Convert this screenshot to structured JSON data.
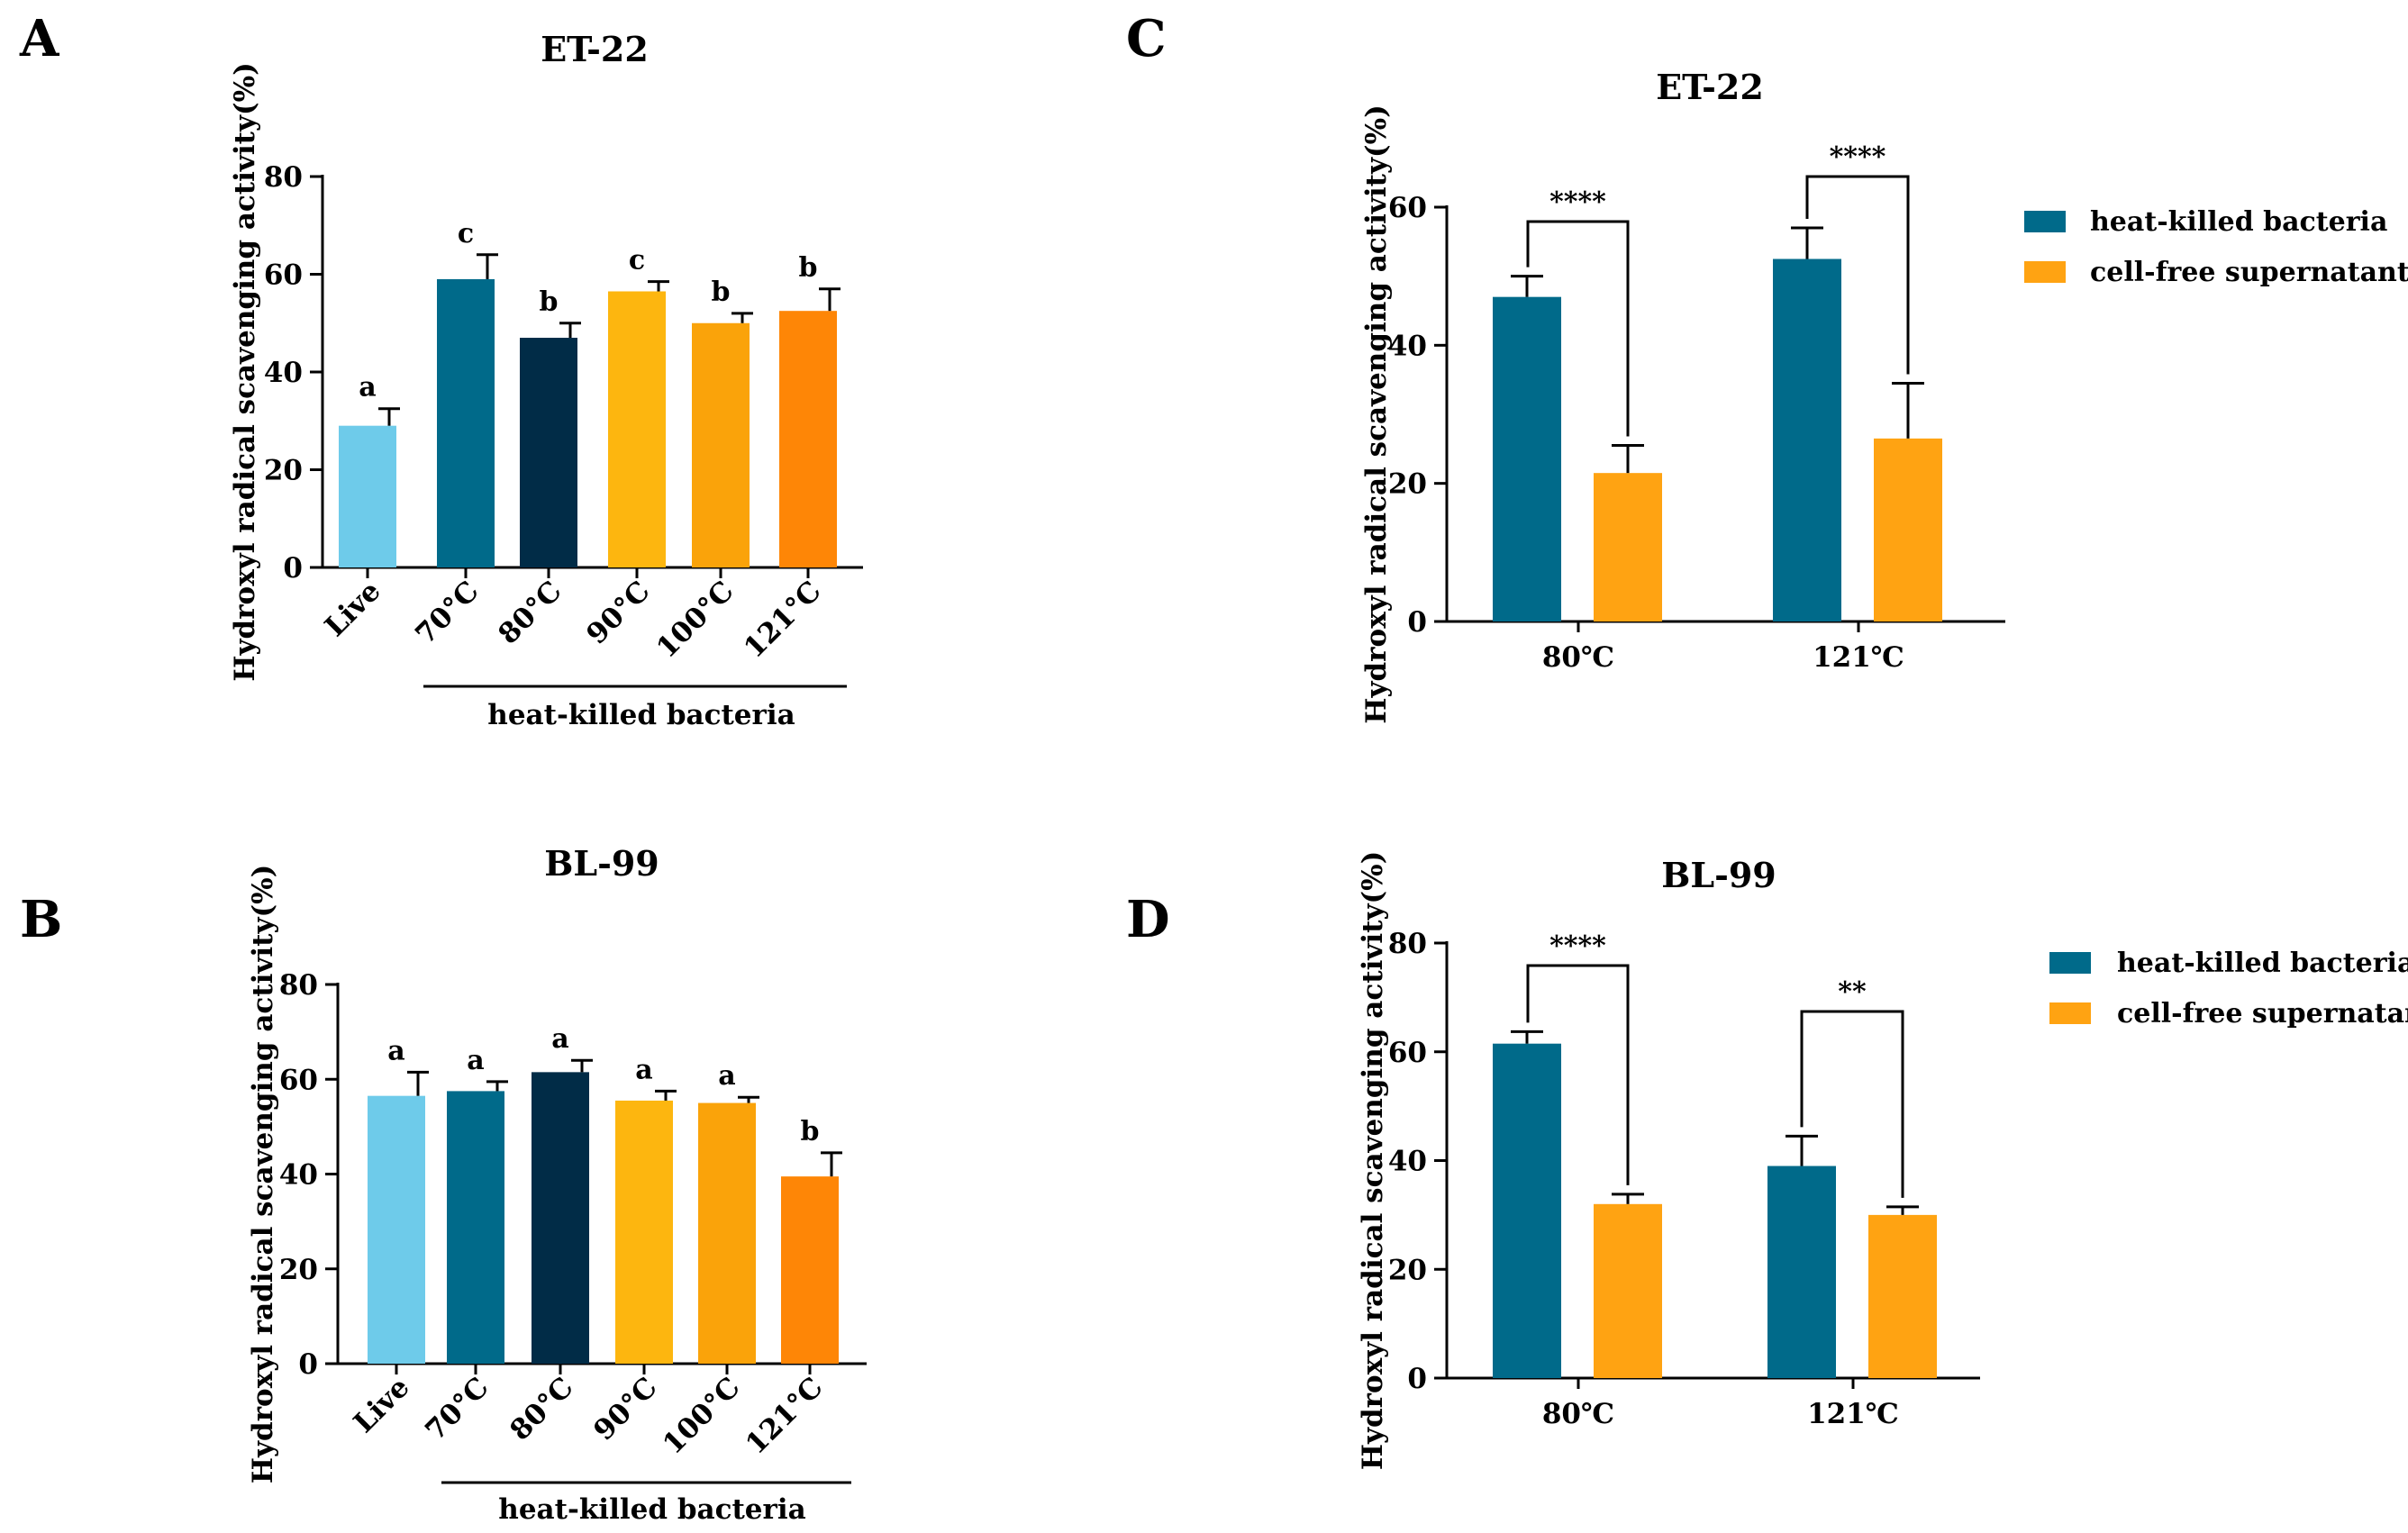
{
  "panels": {
    "A": "A",
    "B": "B",
    "C": "C",
    "D": "D"
  },
  "colors": {
    "live": "#6ECBEA",
    "c70": "#006A8A",
    "c80": "#012C47",
    "c90": "#FDB60F",
    "c100": "#FAA30A",
    "c121": "#FE8606",
    "heat_killed": "#006A8A",
    "supernatant": "#FFA312"
  },
  "chart_data": [
    {
      "id": "A",
      "type": "bar",
      "title": "ET-22",
      "ylabel": "Hydroxyl radical scavenging activity(%)",
      "ylim": [
        0,
        80
      ],
      "yticks": [
        "0",
        "20",
        "40",
        "60",
        "80"
      ],
      "categories": [
        "Live",
        "70°C",
        "80°C",
        "90°C",
        "100°C",
        "121°C"
      ],
      "values": [
        29,
        59,
        47,
        56.5,
        50,
        52.5
      ],
      "errors": [
        3.5,
        5,
        3,
        2,
        2,
        4.5
      ],
      "sig_letters": [
        "a",
        "c",
        "b",
        "c",
        "b",
        "b"
      ],
      "group_label": "heat-killed bacteria"
    },
    {
      "id": "B",
      "type": "bar",
      "title": "BL-99",
      "ylabel": "Hydroxyl radical scavenging activity(%)",
      "ylim": [
        0,
        80
      ],
      "yticks": [
        "0",
        "20",
        "40",
        "60",
        "80"
      ],
      "categories": [
        "Live",
        "70°C",
        "80°C",
        "90°C",
        "100°C",
        "121°C"
      ],
      "values": [
        56.5,
        57.5,
        61.5,
        55.5,
        55,
        39.5
      ],
      "errors": [
        5,
        2,
        2.5,
        2,
        1.2,
        5
      ],
      "sig_letters": [
        "a",
        "a",
        "a",
        "a",
        "a",
        "b"
      ],
      "group_label": "heat-killed bacteria"
    },
    {
      "id": "C",
      "type": "bar",
      "title": "ET-22",
      "ylabel": "Hydroxyl radical scavenging activity(%)",
      "ylim": [
        0,
        60
      ],
      "yticks": [
        "0",
        "20",
        "40",
        "60"
      ],
      "categories": [
        "80℃",
        "121℃"
      ],
      "series": [
        {
          "name": "heat-killed bacteria",
          "values": [
            47,
            52.5
          ],
          "errors": [
            3,
            4.5
          ]
        },
        {
          "name": "cell-free supernatant",
          "values": [
            21.5,
            26.5
          ],
          "errors": [
            4,
            8
          ]
        }
      ],
      "significance": [
        "****",
        "****"
      ],
      "legend_position": "right"
    },
    {
      "id": "D",
      "type": "bar",
      "title": "BL-99",
      "ylabel": "Hydroxyl radical scavenging activity(%)",
      "ylim": [
        0,
        80
      ],
      "yticks": [
        "0",
        "20",
        "40",
        "60",
        "80"
      ],
      "categories": [
        "80℃",
        "121℃"
      ],
      "series": [
        {
          "name": "heat-killed bacteria",
          "values": [
            61.5,
            39
          ],
          "errors": [
            2.2,
            5.5
          ]
        },
        {
          "name": "cell-free supernatant",
          "values": [
            32,
            30
          ],
          "errors": [
            1.8,
            1.5
          ]
        }
      ],
      "significance": [
        "****",
        "**"
      ],
      "legend_position": "right"
    }
  ]
}
